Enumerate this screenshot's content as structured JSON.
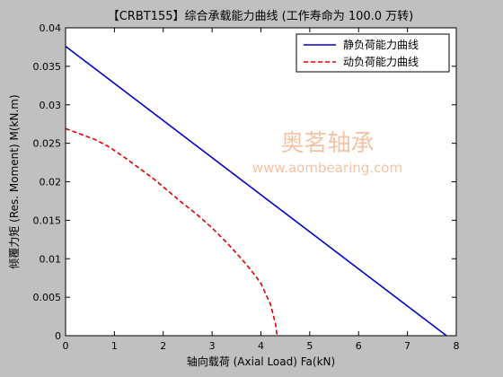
{
  "chart_data": {
    "type": "line",
    "title": "【CRBT155】综合承载能力曲线 (工作寿命为 100.0 万转)",
    "xlabel": "轴向载荷 (Axial Load) Fa(kN)",
    "ylabel": "倾覆力矩 (Res. Moment) M(kN.m)",
    "xlim": [
      0,
      8
    ],
    "ylim": [
      0,
      0.04
    ],
    "xticks": [
      "0",
      "1",
      "2",
      "3",
      "4",
      "5",
      "6",
      "7",
      "8"
    ],
    "yticks": [
      "0",
      "0.005",
      "0.01",
      "0.015",
      "0.02",
      "0.025",
      "0.03",
      "0.035",
      "0.04"
    ],
    "grid": false,
    "legend_position": "top-right",
    "series": [
      {
        "name": "静负荷能力曲线",
        "color": "#0000cc",
        "style": "solid",
        "x": [
          0,
          7.8
        ],
        "y": [
          0.0376,
          0
        ]
      },
      {
        "name": "动负荷能力曲线",
        "color": "#dd0000",
        "style": "dashed",
        "x": [
          0,
          0.3,
          0.6,
          0.9,
          1.2,
          1.5,
          1.8,
          2.1,
          2.4,
          2.7,
          3.0,
          3.3,
          3.6,
          3.8,
          4.0,
          4.2,
          4.3,
          4.33
        ],
        "y": [
          0.0269,
          0.0262,
          0.0255,
          0.0245,
          0.0232,
          0.0218,
          0.0204,
          0.0188,
          0.0172,
          0.0157,
          0.014,
          0.0121,
          0.01,
          0.0085,
          0.0068,
          0.004,
          0.0015,
          0.0
        ]
      }
    ]
  },
  "watermark": {
    "text_cn": "奥茗轴承",
    "url": "www.aombearing.com",
    "color": "#f3c3a4"
  }
}
